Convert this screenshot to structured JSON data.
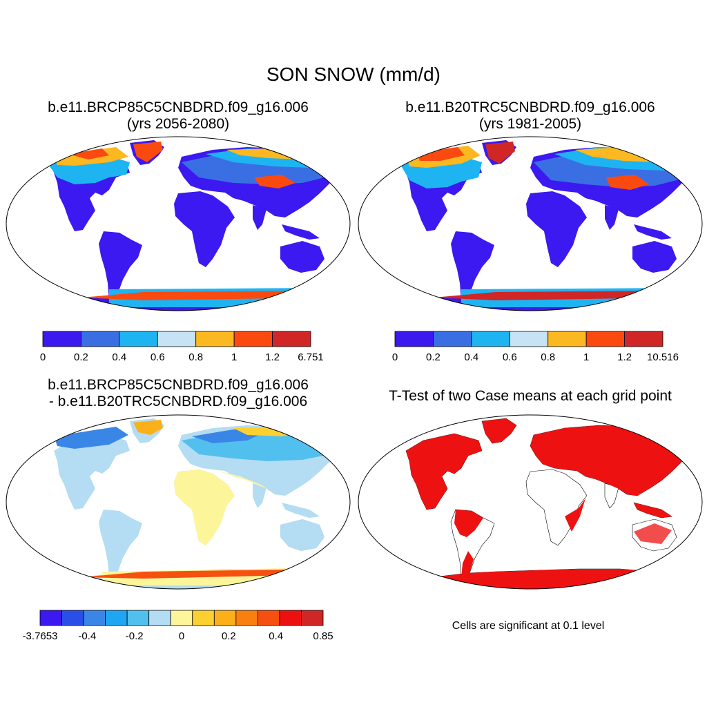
{
  "title": "SON SNOW (mm/d)",
  "panels": [
    {
      "title_line1": "b.e11.BRCP85C5CNBDRD.f09_g16.006",
      "title_line2": "(yrs 2056-2080)",
      "colorbar": {
        "labels": [
          "0",
          "0.2",
          "0.4",
          "0.6",
          "0.8",
          "1",
          "1.2",
          "6.751"
        ],
        "colors": [
          "#3b19f0",
          "#3a6fe4",
          "#1eb4f2",
          "#c6e3f5",
          "#fbb820",
          "#fb4a10",
          "#d02626"
        ]
      }
    },
    {
      "title_line1": "b.e11.B20TRC5CNBDRD.f09_g16.006",
      "title_line2": "(yrs 1981-2005)",
      "colorbar": {
        "labels": [
          "0",
          "0.2",
          "0.4",
          "0.6",
          "0.8",
          "1",
          "1.2",
          "10.516"
        ],
        "colors": [
          "#3b19f0",
          "#3a6fe4",
          "#1eb4f2",
          "#c6e3f5",
          "#fbb820",
          "#fb4a10",
          "#d02626"
        ]
      }
    },
    {
      "title_line1": "b.e11.BRCP85C5CNBDRD.f09_g16.006",
      "title_line2": "- b.e11.B20TRC5CNBDRD.f09_g16.006",
      "colorbar": {
        "labels": [
          "-3.7653",
          "-0.4",
          "-0.2",
          "0",
          "0.2",
          "0.4",
          "0.85"
        ],
        "colors": [
          "#3b19f0",
          "#2a4ee8",
          "#3a86e6",
          "#1ea6f2",
          "#52c0ee",
          "#b4dcf2",
          "#fdf59a",
          "#fbd030",
          "#fbb01a",
          "#f98010",
          "#f65010",
          "#ec1010",
          "#d02626"
        ]
      }
    },
    {
      "title_line1": "T-Test of two Case means at each grid point",
      "note": "Cells are significant at 0.1 level"
    }
  ]
}
